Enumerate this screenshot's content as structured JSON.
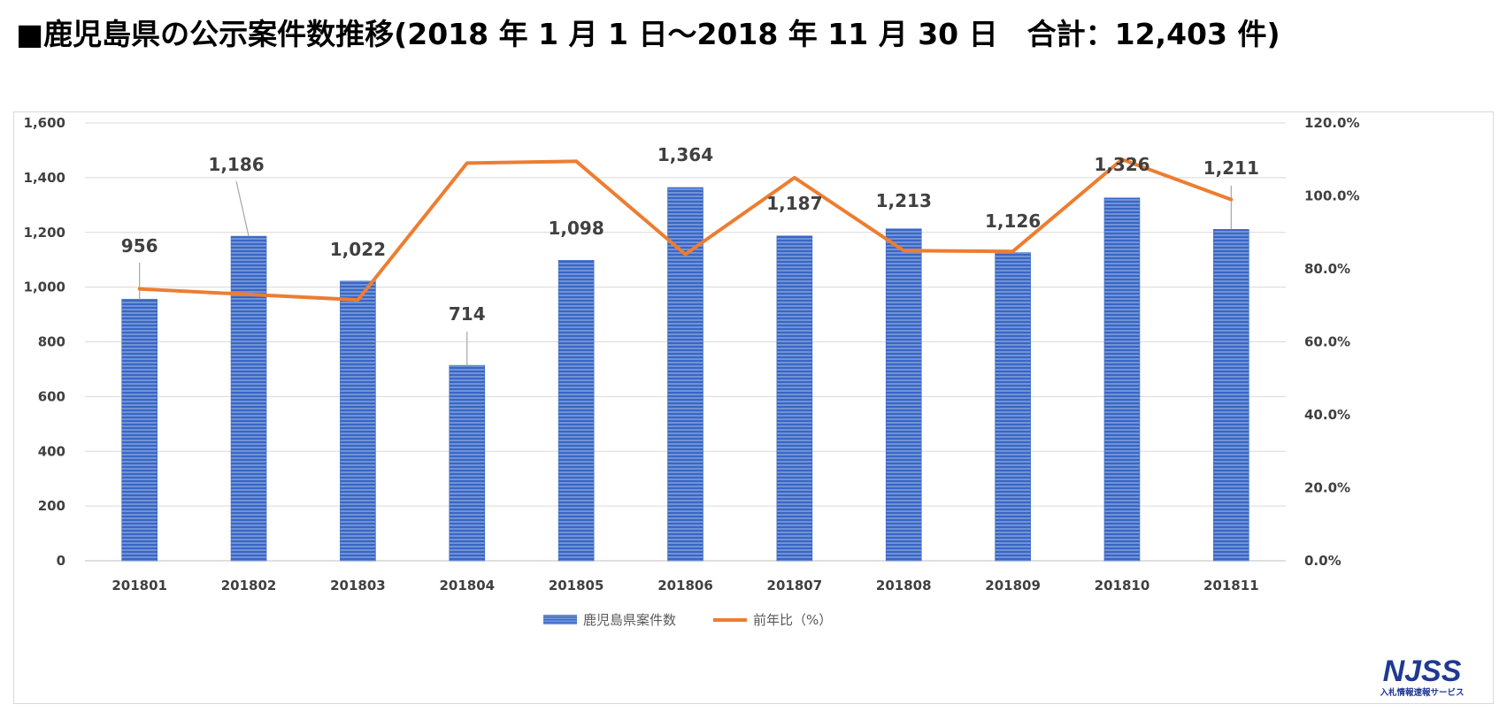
{
  "title": "■鹿児島県の公示案件数推移(2018 年 1 月 1 日〜2018 年 11 月 30 日　合計：12,403 件)",
  "logo": {
    "text": "NJSS",
    "subtext": "入札情報速報サービス"
  },
  "colors": {
    "bar": "#4472c4",
    "line": "#ed7d31",
    "grid": "#d9d9d9",
    "label": "#404040"
  },
  "chart_data": {
    "type": "bar+line",
    "title": "■鹿児島県の公示案件数推移(2018 年 1 月 1 日〜2018 年 11 月 30 日　合計：12,403 件)",
    "categories": [
      "201801",
      "201802",
      "201803",
      "201804",
      "201805",
      "201806",
      "201807",
      "201808",
      "201809",
      "201810",
      "201811"
    ],
    "series": [
      {
        "name": "鹿児島県案件数",
        "type": "bar",
        "axis": "left",
        "values": [
          956,
          1186,
          1022,
          714,
          1098,
          1364,
          1187,
          1213,
          1126,
          1326,
          1211
        ],
        "labels": [
          "956",
          "1,186",
          "1,022",
          "714",
          "1,098",
          "1,364",
          "1,187",
          "1,213",
          "1,126",
          "1,326",
          "1,211"
        ]
      },
      {
        "name": "前年比（%）",
        "type": "line",
        "axis": "right",
        "values": [
          74.5,
          73.0,
          71.5,
          109.0,
          109.5,
          84.0,
          105.0,
          85.0,
          84.8,
          110.0,
          99.0
        ]
      }
    ],
    "y_left": {
      "min": 0,
      "max": 1600,
      "ticks": [
        "0",
        "200",
        "400",
        "600",
        "800",
        "1,000",
        "1,200",
        "1,400",
        "1,600"
      ]
    },
    "y_right": {
      "min": 0,
      "max": 120,
      "ticks": [
        "0.0%",
        "20.0%",
        "40.0%",
        "60.0%",
        "80.0%",
        "100.0%",
        "120.0%"
      ]
    },
    "grid": true,
    "legend": "bottom-center"
  }
}
